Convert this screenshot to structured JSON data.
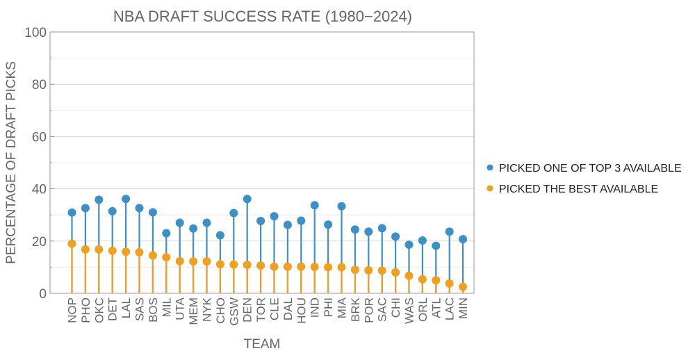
{
  "chart_data": {
    "type": "scatter",
    "title": "NBA DRAFT SUCCESS RATE (1980−2024)",
    "xlabel": "TEAM",
    "ylabel": "PERCENTAGE OF DRAFT PICKS",
    "ylim": [
      0,
      100
    ],
    "yticks": [
      "0",
      "20",
      "40",
      "60",
      "80",
      "100"
    ],
    "grid": true,
    "legend_position": "right",
    "categories": [
      "NOP",
      "PHO",
      "OKC",
      "DET",
      "LAL",
      "SAS",
      "BOS",
      "MIL",
      "UTA",
      "MEM",
      "NYK",
      "CHO",
      "GSW",
      "DEN",
      "TOR",
      "CLE",
      "DAL",
      "HOU",
      "IND",
      "PHI",
      "MIA",
      "BRK",
      "POR",
      "SAC",
      "CHI",
      "WAS",
      "ORL",
      "ATL",
      "LAC",
      "MIN"
    ],
    "series": [
      {
        "name": "PICKED ONE OF TOP 3 AVAILABLE",
        "color": "#3d8fc8",
        "values": [
          30.9,
          32.6,
          35.8,
          31.4,
          36.1,
          32.6,
          31.0,
          23.0,
          27.0,
          24.8,
          27.0,
          22.2,
          30.7,
          36.1,
          27.7,
          29.5,
          26.2,
          27.8,
          33.7,
          26.3,
          33.3,
          24.4,
          23.6,
          24.9,
          21.7,
          18.6,
          20.2,
          18.2,
          23.6,
          20.7
        ]
      },
      {
        "name": "PICKED THE BEST AVAILABLE",
        "color": "#f0a01e",
        "values": [
          19.0,
          16.8,
          16.8,
          16.3,
          15.9,
          15.7,
          14.5,
          13.8,
          12.3,
          12.2,
          12.2,
          11.1,
          11.0,
          10.9,
          10.6,
          10.2,
          10.2,
          10.2,
          10.1,
          10.0,
          10.0,
          9.0,
          8.8,
          8.7,
          8.0,
          6.7,
          5.4,
          5.0,
          3.8,
          2.5
        ]
      }
    ]
  }
}
